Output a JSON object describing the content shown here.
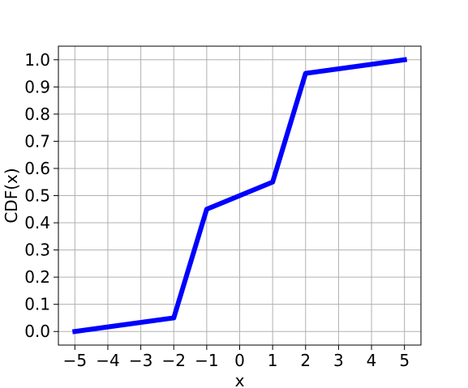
{
  "chart_data": {
    "type": "line",
    "title": "",
    "xlabel": "x",
    "ylabel": "CDF(x)",
    "xlim": [
      -5.5,
      5.5
    ],
    "ylim": [
      -0.05,
      1.05
    ],
    "grid": true,
    "x_ticks": [
      -5,
      -4,
      -3,
      -2,
      -1,
      0,
      1,
      2,
      3,
      4,
      5
    ],
    "x_tick_labels": [
      "−5",
      "−4",
      "−3",
      "−2",
      "−1",
      "0",
      "1",
      "2",
      "3",
      "4",
      "5"
    ],
    "y_ticks": [
      0.0,
      0.1,
      0.2,
      0.3,
      0.4,
      0.5,
      0.6,
      0.7,
      0.8,
      0.9,
      1.0
    ],
    "y_tick_labels": [
      "0.0",
      "0.1",
      "0.2",
      "0.3",
      "0.4",
      "0.5",
      "0.6",
      "0.7",
      "0.8",
      "0.9",
      "1.0"
    ],
    "series": [
      {
        "color": "#0000ff",
        "x": [
          -5,
          -2,
          -1,
          1,
          2,
          5
        ],
        "y": [
          0.0,
          0.05,
          0.45,
          0.55,
          0.95,
          1.0
        ]
      }
    ]
  }
}
